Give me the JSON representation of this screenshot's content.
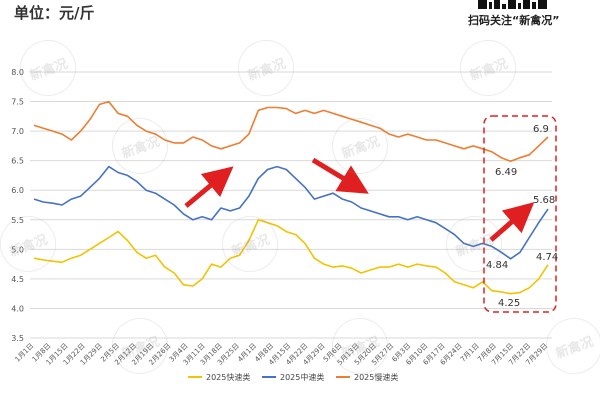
{
  "header": {
    "unit_label": "单位：元/斤",
    "brand_caption": "扫码关注“新禽况”"
  },
  "watermarks": [
    "新禽况",
    "新禽况",
    "新禽况",
    "新禽况",
    "新禽况",
    "新禽况",
    "新禽况",
    "新禽况",
    "新禽况",
    "新禽况",
    "新禽况"
  ],
  "chart_data": {
    "type": "line",
    "title": "",
    "xlabel": "",
    "ylabel": "",
    "ylim": [
      3.5,
      8.0
    ],
    "yticks": [
      "3.5",
      "4.0",
      "4.5",
      "5.0",
      "5.5",
      "6.0",
      "6.5",
      "7.0",
      "7.5",
      "8.0"
    ],
    "grid": true,
    "legend_position": "bottom",
    "x_tick_labels": [
      "1月1日",
      "1月8日",
      "1月15日",
      "1月22日",
      "1月29日",
      "2月5日",
      "2月12日",
      "2月19日",
      "2月26日",
      "3月4日",
      "3月11日",
      "3月18日",
      "3月25日",
      "4月1日",
      "4月8日",
      "4月15日",
      "4月22日",
      "4月29日",
      "5月6日",
      "5月13日",
      "5月20日",
      "5月27日",
      "6月3日",
      "6月10日",
      "6月17日",
      "6月24日",
      "7月1日",
      "7月8日",
      "7月15日",
      "7月22日",
      "7月29日"
    ],
    "series": [
      {
        "name": "2025快速类",
        "color": "#F2C300",
        "values": [
          4.85,
          4.82,
          4.8,
          4.78,
          4.85,
          4.9,
          5.0,
          5.1,
          5.2,
          5.3,
          5.15,
          4.95,
          4.85,
          4.9,
          4.7,
          4.6,
          4.4,
          4.38,
          4.5,
          4.75,
          4.7,
          4.85,
          4.9,
          5.15,
          5.5,
          5.45,
          5.4,
          5.3,
          5.25,
          5.1,
          4.85,
          4.75,
          4.7,
          4.72,
          4.68,
          4.6,
          4.65,
          4.7,
          4.7,
          4.75,
          4.7,
          4.75,
          4.72,
          4.7,
          4.6,
          4.45,
          4.4,
          4.35,
          4.45,
          4.3,
          4.28,
          4.25,
          4.27,
          4.35,
          4.5,
          4.74
        ]
      },
      {
        "name": "2025中速类",
        "color": "#4472C4",
        "values": [
          5.85,
          5.8,
          5.78,
          5.75,
          5.85,
          5.9,
          6.05,
          6.2,
          6.4,
          6.3,
          6.25,
          6.15,
          6.0,
          5.95,
          5.85,
          5.75,
          5.6,
          5.5,
          5.55,
          5.5,
          5.7,
          5.65,
          5.7,
          5.9,
          6.2,
          6.35,
          6.4,
          6.35,
          6.2,
          6.05,
          5.85,
          5.9,
          5.95,
          5.85,
          5.8,
          5.7,
          5.65,
          5.6,
          5.55,
          5.55,
          5.5,
          5.55,
          5.5,
          5.45,
          5.35,
          5.25,
          5.1,
          5.05,
          5.1,
          5.05,
          4.95,
          4.84,
          4.95,
          5.2,
          5.45,
          5.68
        ]
      },
      {
        "name": "2025慢速类",
        "color": "#ED7D31",
        "values": [
          7.1,
          7.05,
          7.0,
          6.95,
          6.85,
          7.0,
          7.2,
          7.45,
          7.5,
          7.3,
          7.25,
          7.1,
          7.0,
          6.95,
          6.85,
          6.8,
          6.8,
          6.9,
          6.85,
          6.75,
          6.7,
          6.75,
          6.8,
          6.95,
          7.35,
          7.4,
          7.4,
          7.38,
          7.3,
          7.35,
          7.3,
          7.35,
          7.3,
          7.25,
          7.2,
          7.15,
          7.1,
          7.05,
          6.95,
          6.9,
          6.95,
          6.9,
          6.85,
          6.85,
          6.8,
          6.75,
          6.7,
          6.75,
          6.7,
          6.65,
          6.55,
          6.49,
          6.55,
          6.6,
          6.75,
          6.9
        ]
      }
    ],
    "annotations": [
      "6.9",
      "6.49",
      "5.68",
      "4.84",
      "4.74",
      "4.25"
    ]
  }
}
